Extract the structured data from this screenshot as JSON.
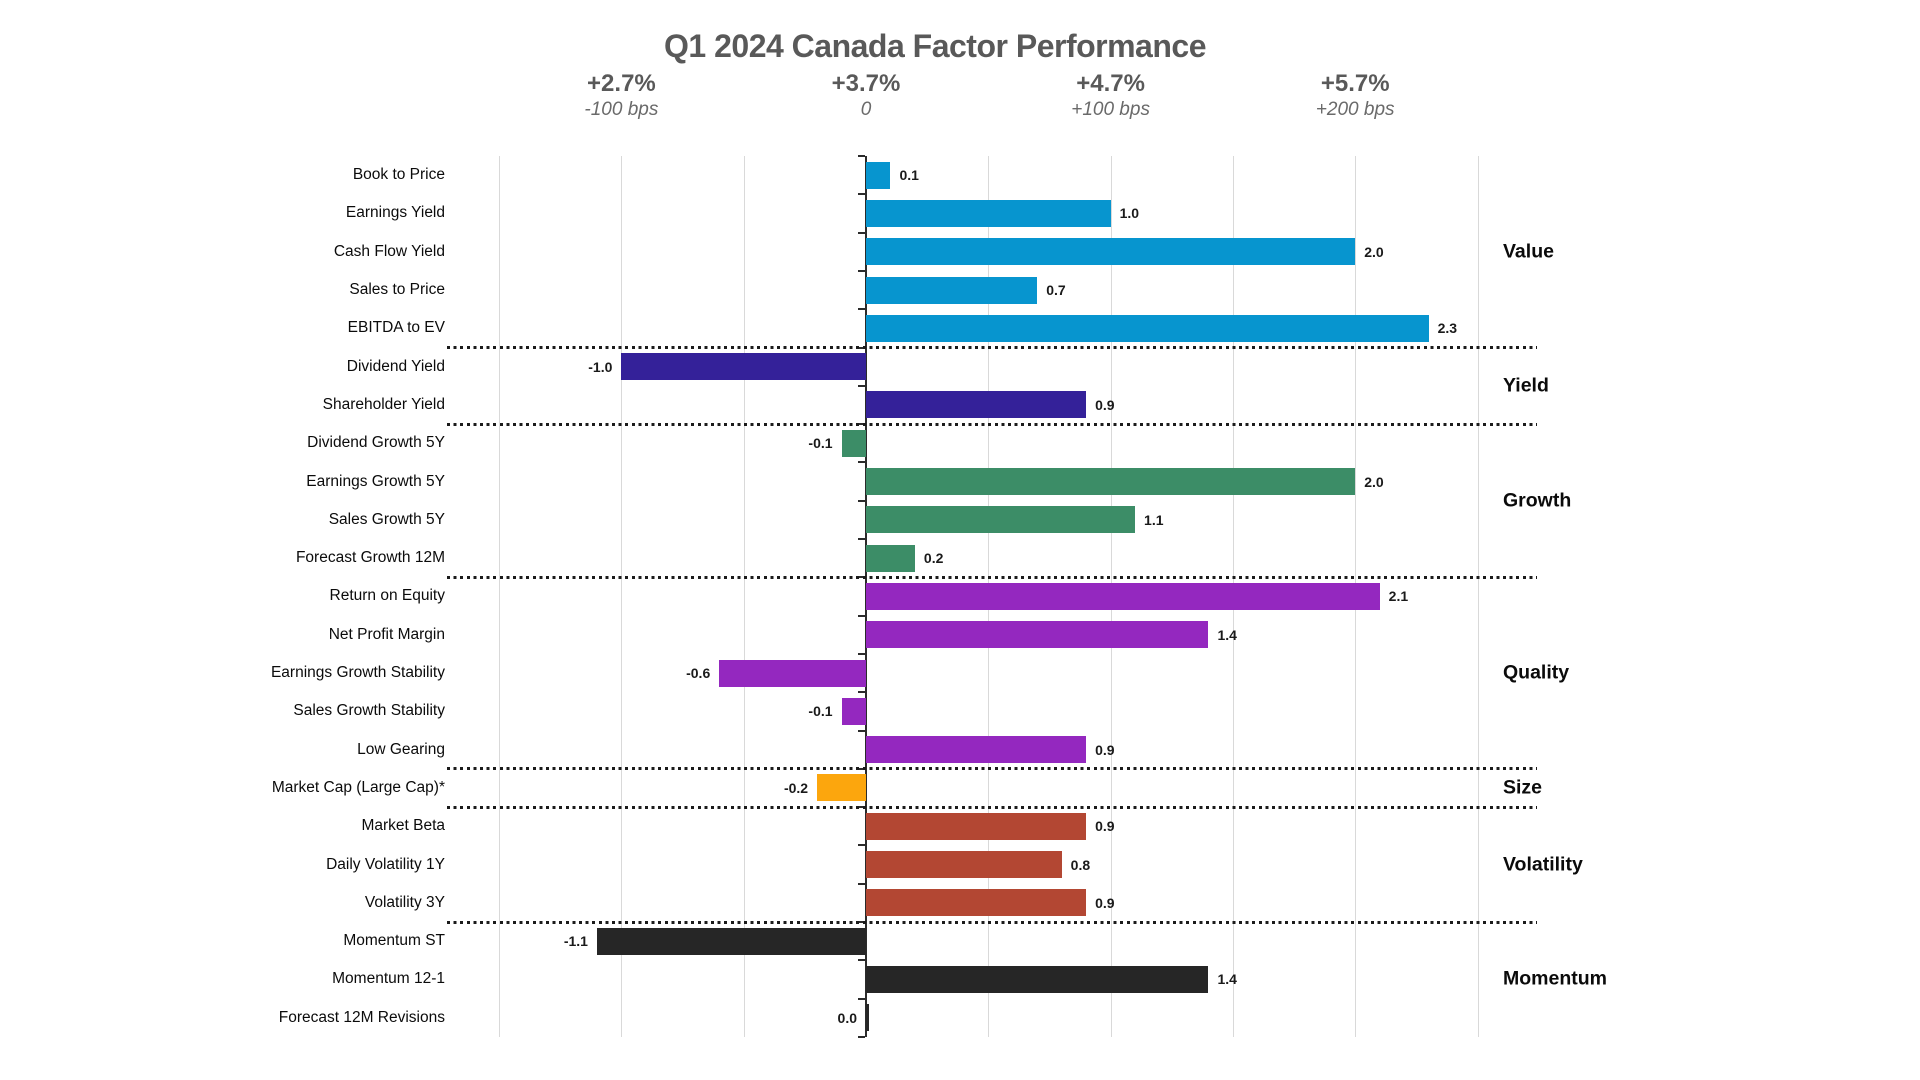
{
  "title": "Q1 2024 Canada Factor Performance",
  "chart_data": {
    "type": "bar",
    "orientation": "horizontal",
    "title": "Q1 2024 Canada Factor Performance",
    "unit_note": "bar values are active return in %, 1.0 = 100 bps",
    "axis": {
      "xmin": -1.5,
      "xmax": 2.5,
      "grid_step": 0.5,
      "grid": true,
      "legend": "none",
      "ticks": [
        {
          "at": -1.0,
          "percent": "+2.7%",
          "bps": "-100 bps"
        },
        {
          "at": 0.0,
          "percent": "+3.7%",
          "bps": "0"
        },
        {
          "at": 1.0,
          "percent": "+4.7%",
          "bps": "+100 bps"
        },
        {
          "at": 2.0,
          "percent": "+5.7%",
          "bps": "+200 bps"
        }
      ]
    },
    "groups": [
      {
        "name": "Value",
        "color": "#0795CF",
        "items": [
          {
            "label": "Book to Price",
            "value": 0.1,
            "display": "0.1"
          },
          {
            "label": "Earnings Yield",
            "value": 1.0,
            "display": "1.0"
          },
          {
            "label": "Cash Flow Yield",
            "value": 2.0,
            "display": "2.0"
          },
          {
            "label": "Sales to Price",
            "value": 0.7,
            "display": "0.7"
          },
          {
            "label": "EBITDA to EV",
            "value": 2.3,
            "display": "2.3"
          }
        ]
      },
      {
        "name": "Yield",
        "color": "#342199",
        "items": [
          {
            "label": "Dividend Yield",
            "value": -1.0,
            "display": "-1.0"
          },
          {
            "label": "Shareholder Yield",
            "value": 0.9,
            "display": "0.9"
          }
        ]
      },
      {
        "name": "Growth",
        "color": "#3C8D67",
        "items": [
          {
            "label": "Dividend Growth 5Y",
            "value": -0.1,
            "display": "-0.1"
          },
          {
            "label": "Earnings Growth 5Y",
            "value": 2.0,
            "display": "2.0"
          },
          {
            "label": "Sales Growth 5Y",
            "value": 1.1,
            "display": "1.1"
          },
          {
            "label": "Forecast Growth 12M",
            "value": 0.2,
            "display": "0.2"
          }
        ]
      },
      {
        "name": "Quality",
        "color": "#9428BF",
        "items": [
          {
            "label": "Return on Equity",
            "value": 2.1,
            "display": "2.1"
          },
          {
            "label": "Net Profit Margin",
            "value": 1.4,
            "display": "1.4"
          },
          {
            "label": "Earnings Growth Stability",
            "value": -0.6,
            "display": "-0.6"
          },
          {
            "label": "Sales Growth Stability",
            "value": -0.1,
            "display": "-0.1"
          },
          {
            "label": "Low Gearing",
            "value": 0.9,
            "display": "0.9"
          }
        ]
      },
      {
        "name": "Size",
        "color": "#FCA60D",
        "items": [
          {
            "label": "Market Cap (Large Cap)*",
            "value": -0.2,
            "display": "-0.2"
          }
        ]
      },
      {
        "name": "Volatility",
        "color": "#B34733",
        "items": [
          {
            "label": "Market Beta",
            "value": 0.9,
            "display": "0.9"
          },
          {
            "label": "Daily Volatility 1Y",
            "value": 0.8,
            "display": "0.8"
          },
          {
            "label": "Volatility 3Y",
            "value": 0.9,
            "display": "0.9"
          }
        ]
      },
      {
        "name": "Momentum",
        "color": "#262626",
        "items": [
          {
            "label": "Momentum ST",
            "value": -1.1,
            "display": "-1.1"
          },
          {
            "label": "Momentum 12-1",
            "value": 1.4,
            "display": "1.4"
          },
          {
            "label": "Forecast 12M Revisions",
            "value": 0.0,
            "display": "0.0"
          }
        ]
      }
    ]
  },
  "colors": {
    "title_gray": "#595959",
    "gridline": "#D9D9D9",
    "zero_axis": "#2B2B2B",
    "separator_dots": "#1B1B1B",
    "background": "#FFFFFF"
  }
}
